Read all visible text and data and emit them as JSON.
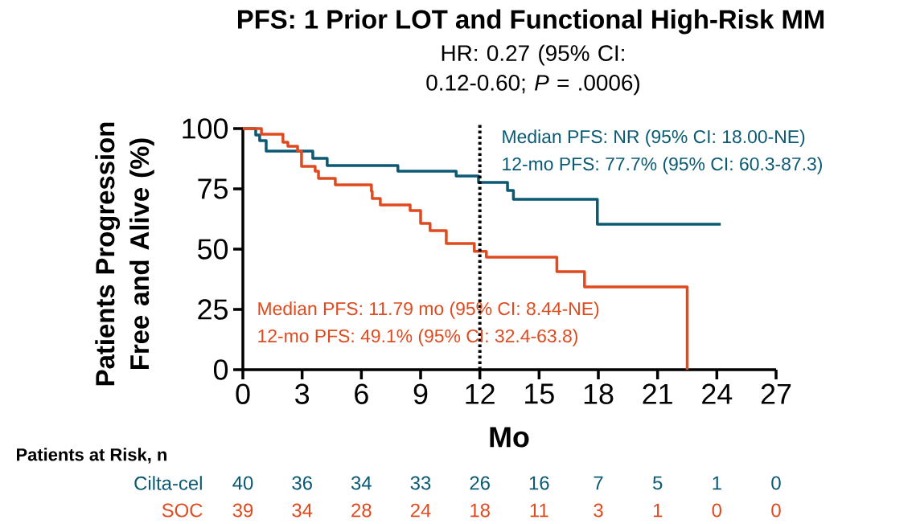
{
  "chart_data": {
    "type": "step",
    "title": "PFS: 1 Prior LOT and Functional High-Risk MM",
    "subtitle": "HR: 0.27 (95% CI: 0.12-0.60; *P* = .0006)",
    "xlabel": "Mo",
    "ylabel": "Patients Progression Free and Alive (%)",
    "xlim": [
      0,
      27
    ],
    "ylim": [
      0,
      100
    ],
    "xticks": [
      0,
      3,
      6,
      9,
      12,
      15,
      18,
      21,
      24,
      27
    ],
    "yticks": [
      0,
      25,
      50,
      75,
      100
    ],
    "grid": false,
    "legend": false,
    "series": [
      {
        "name": "Cilta-cel",
        "color": "#0b5a74",
        "x": [
          0,
          0.65,
          0.85,
          1.18,
          3.54,
          4.27,
          7.85,
          10.8,
          11.93,
          13.4,
          13.7,
          17.95,
          24.2
        ],
        "values": [
          100,
          97.3,
          95,
          90.7,
          87.7,
          84.7,
          82.3,
          80.3,
          77.7,
          74.3,
          70.7,
          60.3,
          60.3
        ]
      },
      {
        "name": "SOC",
        "color": "#e04a1f",
        "x": [
          0,
          0.94,
          2.03,
          2.28,
          2.77,
          2.97,
          3.66,
          3.83,
          4.68,
          6.51,
          6.55,
          6.96,
          8.47,
          9.0,
          9.48,
          10.3,
          11.72,
          12.33,
          15.9,
          17.3,
          22.5
        ],
        "values": [
          100,
          97.7,
          94.3,
          92.7,
          90.7,
          84.3,
          82.3,
          79.3,
          76.7,
          74,
          71,
          68.3,
          66,
          60.7,
          57.7,
          52.3,
          49.1,
          46.7,
          40.7,
          34.3,
          0
        ]
      }
    ],
    "ref_lines": [
      {
        "axis": "x",
        "value": 12,
        "label": null,
        "color": "#000000",
        "line_style": "dotted"
      }
    ],
    "annotations": [
      "Median PFS: NR  (95% CI: 18.00-NE)",
      "12-mo PFS: 77.7% (95% CI: 60.3-87.3)",
      "Median PFS: 11.79 mo (95% CI: 8.44-NE)",
      "12-mo PFS: 49.1% (95% CI: 32.4-63.8)",
      "Patients at Risk, n",
      "40",
      "36",
      "34",
      "33",
      "26",
      "16",
      "7",
      "5",
      "1",
      "0",
      "39",
      "34",
      "28",
      "24",
      "18",
      "11",
      "3",
      "1",
      "0",
      "0"
    ]
  }
}
